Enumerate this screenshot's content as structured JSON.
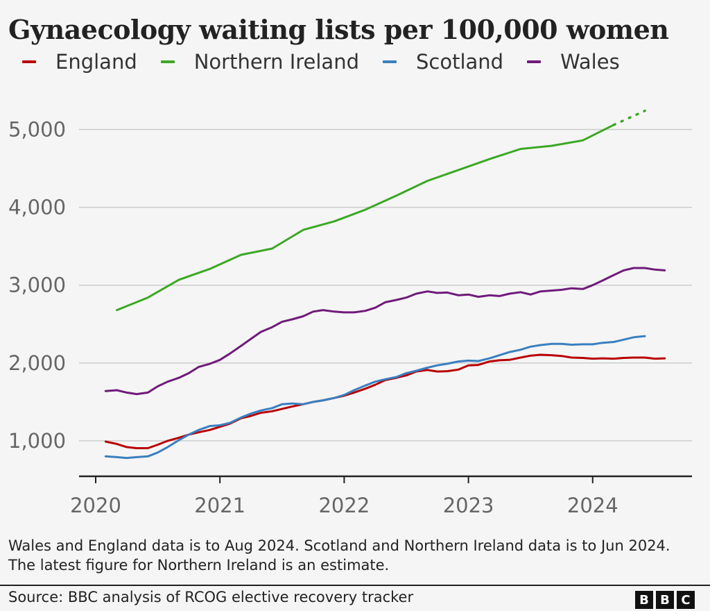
{
  "chart_data": {
    "type": "line",
    "title": "Gynaecology waiting lists per 100,000 women",
    "xlabel": "",
    "ylabel": "",
    "xlim": [
      2020,
      2024.75
    ],
    "ylim": [
      500,
      5300
    ],
    "yticks": [
      1000,
      2000,
      3000,
      4000,
      5000
    ],
    "ytick_labels": [
      "1,000",
      "2,000",
      "3,000",
      "4,000",
      "5,000"
    ],
    "xticks": [
      2020,
      2021,
      2022,
      2023,
      2024
    ],
    "xtick_labels": [
      "2020",
      "2021",
      "2022",
      "2023",
      "2024"
    ],
    "grid": true,
    "legend_position": "top-left",
    "series": [
      {
        "name": "England",
        "color": "#b80000",
        "x": [
          2020.08,
          2020.17,
          2020.25,
          2020.33,
          2020.42,
          2020.5,
          2020.58,
          2020.67,
          2020.75,
          2020.83,
          2020.92,
          2021.0,
          2021.08,
          2021.17,
          2021.25,
          2021.33,
          2021.42,
          2021.5,
          2021.58,
          2021.67,
          2021.75,
          2021.83,
          2021.92,
          2022.0,
          2022.08,
          2022.17,
          2022.25,
          2022.33,
          2022.42,
          2022.5,
          2022.58,
          2022.67,
          2022.75,
          2022.83,
          2022.92,
          2023.0,
          2023.08,
          2023.17,
          2023.25,
          2023.33,
          2023.42,
          2023.5,
          2023.58,
          2023.67,
          2023.75,
          2023.83,
          2023.92,
          2024.0,
          2024.08,
          2024.17,
          2024.25,
          2024.33,
          2024.42,
          2024.5,
          2024.58
        ],
        "values": [
          990,
          960,
          920,
          905,
          905,
          950,
          1000,
          1040,
          1080,
          1110,
          1140,
          1180,
          1220,
          1290,
          1320,
          1360,
          1380,
          1410,
          1440,
          1470,
          1500,
          1520,
          1550,
          1580,
          1620,
          1670,
          1720,
          1780,
          1810,
          1840,
          1890,
          1910,
          1890,
          1895,
          1915,
          1970,
          1975,
          2020,
          2035,
          2040,
          2070,
          2095,
          2105,
          2100,
          2090,
          2070,
          2065,
          2055,
          2060,
          2055,
          2065,
          2070,
          2070,
          2055,
          2060
        ]
      },
      {
        "name": "Northern Ireland",
        "color": "#3ba824",
        "x": [
          2020.17,
          2020.42,
          2020.67,
          2020.92,
          2021.17,
          2021.42,
          2021.67,
          2021.92,
          2022.17,
          2022.42,
          2022.67,
          2022.92,
          2023.17,
          2023.42,
          2023.67,
          2023.92,
          2024.17
        ],
        "values": [
          2680,
          2840,
          3070,
          3210,
          3390,
          3470,
          3710,
          3820,
          3970,
          4150,
          4340,
          4480,
          4620,
          4750,
          4790,
          4860,
          5060
        ],
        "estimate_x": [
          2024.17,
          2024.42
        ],
        "estimate_values": [
          5060,
          5240
        ]
      },
      {
        "name": "Scotland",
        "color": "#3a7fbf",
        "x": [
          2020.08,
          2020.17,
          2020.25,
          2020.33,
          2020.42,
          2020.5,
          2020.58,
          2020.67,
          2020.75,
          2020.83,
          2020.92,
          2021.0,
          2021.08,
          2021.17,
          2021.25,
          2021.33,
          2021.42,
          2021.5,
          2021.58,
          2021.67,
          2021.75,
          2021.83,
          2021.92,
          2022.0,
          2022.08,
          2022.17,
          2022.25,
          2022.33,
          2022.42,
          2022.5,
          2022.58,
          2022.67,
          2022.75,
          2022.83,
          2022.92,
          2023.0,
          2023.08,
          2023.17,
          2023.25,
          2023.33,
          2023.42,
          2023.5,
          2023.58,
          2023.67,
          2023.75,
          2023.83,
          2023.92,
          2024.0,
          2024.08,
          2024.17,
          2024.25,
          2024.33,
          2024.42
        ],
        "values": [
          800,
          790,
          780,
          790,
          800,
          850,
          920,
          1010,
          1080,
          1140,
          1190,
          1200,
          1230,
          1300,
          1350,
          1390,
          1420,
          1470,
          1480,
          1470,
          1500,
          1520,
          1550,
          1590,
          1650,
          1710,
          1760,
          1790,
          1820,
          1870,
          1900,
          1940,
          1970,
          1990,
          2020,
          2030,
          2025,
          2060,
          2100,
          2140,
          2170,
          2210,
          2230,
          2245,
          2245,
          2235,
          2240,
          2240,
          2260,
          2270,
          2300,
          2330,
          2345
        ]
      },
      {
        "name": "Wales",
        "color": "#6f1a7a",
        "x": [
          2020.08,
          2020.17,
          2020.25,
          2020.33,
          2020.42,
          2020.5,
          2020.58,
          2020.67,
          2020.75,
          2020.83,
          2020.92,
          2021.0,
          2021.08,
          2021.17,
          2021.25,
          2021.33,
          2021.42,
          2021.5,
          2021.58,
          2021.67,
          2021.75,
          2021.83,
          2021.92,
          2022.0,
          2022.08,
          2022.17,
          2022.25,
          2022.33,
          2022.42,
          2022.5,
          2022.58,
          2022.67,
          2022.75,
          2022.83,
          2022.92,
          2023.0,
          2023.08,
          2023.17,
          2023.25,
          2023.33,
          2023.42,
          2023.5,
          2023.58,
          2023.67,
          2023.75,
          2023.83,
          2023.92,
          2024.0,
          2024.08,
          2024.17,
          2024.25,
          2024.33,
          2024.42,
          2024.5,
          2024.58
        ],
        "values": [
          1640,
          1650,
          1620,
          1600,
          1620,
          1700,
          1760,
          1810,
          1870,
          1950,
          1990,
          2040,
          2120,
          2220,
          2310,
          2400,
          2460,
          2530,
          2560,
          2600,
          2660,
          2680,
          2660,
          2650,
          2650,
          2670,
          2710,
          2780,
          2810,
          2840,
          2890,
          2920,
          2900,
          2905,
          2870,
          2880,
          2850,
          2870,
          2860,
          2890,
          2910,
          2880,
          2920,
          2930,
          2940,
          2960,
          2950,
          3000,
          3060,
          3130,
          3190,
          3220,
          3220,
          3200,
          3190
        ]
      }
    ]
  },
  "notes": "Wales and England data is to Aug 2024. Scotland and Northern Ireland data is to Jun 2024. The latest figure for Northern Ireland is an estimate.",
  "source": "Source: BBC analysis of RCOG elective recovery tracker",
  "logo": [
    "B",
    "B",
    "C"
  ]
}
